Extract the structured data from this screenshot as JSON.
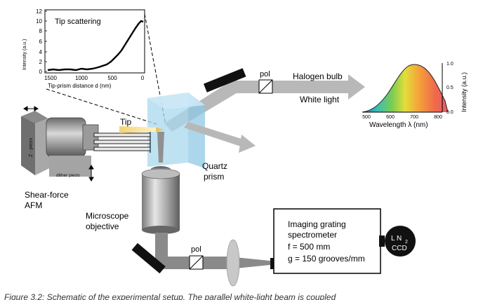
{
  "inset_plot": {
    "title": "Tip scattering",
    "ylabel": "Intensity (a.u.)",
    "xlabel": "Tip-prism distance d (nm)",
    "x_ticks": [
      "1500",
      "1000",
      "500",
      "0"
    ],
    "y_ticks": [
      "0",
      "2",
      "4",
      "6",
      "8",
      "10",
      "12"
    ]
  },
  "spectrum_plot": {
    "ylabel": "Intensity (a.u.)",
    "xlabel": "Wavelength λ (nm)",
    "x_ticks": [
      "500",
      "600",
      "700",
      "800"
    ],
    "y_ticks": [
      "0.0",
      "0.5",
      "1.0"
    ]
  },
  "labels": {
    "pol_top": "pol",
    "pol_bottom": "pol",
    "halogen": "Halogen bulb",
    "white_light": "White light",
    "tip": "Tip",
    "z_piezo": "Z - piezo",
    "dither_piezo": "dither piezo",
    "shear_force_1": "Shear-force",
    "shear_force_2": "AFM",
    "quartz_1": "Quartz",
    "quartz_2": "prism",
    "microscope_1": "Microscope",
    "microscope_2": "objective",
    "spectrometer_1": "Imaging grating",
    "spectrometer_2": "spectrometer",
    "spectrometer_3": "f = 500 mm",
    "spectrometer_4": "g = 150 grooves/mm",
    "ccd_ln": "L N",
    "ccd_sub": "2",
    "ccd": "CCD"
  },
  "caption": "Figure 3.2: Schematic of the experimental setup. The parallel white-light beam is coupled"
}
